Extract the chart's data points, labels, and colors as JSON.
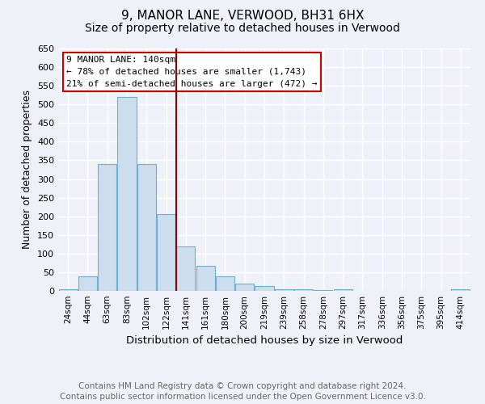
{
  "title": "9, MANOR LANE, VERWOOD, BH31 6HX",
  "subtitle": "Size of property relative to detached houses in Verwood",
  "xlabel": "Distribution of detached houses by size in Verwood",
  "ylabel": "Number of detached properties",
  "categories": [
    "24sqm",
    "44sqm",
    "63sqm",
    "83sqm",
    "102sqm",
    "122sqm",
    "141sqm",
    "161sqm",
    "180sqm",
    "200sqm",
    "219sqm",
    "239sqm",
    "258sqm",
    "278sqm",
    "297sqm",
    "317sqm",
    "336sqm",
    "356sqm",
    "375sqm",
    "395sqm",
    "414sqm"
  ],
  "values": [
    5,
    40,
    340,
    520,
    340,
    205,
    120,
    67,
    38,
    20,
    13,
    5,
    5,
    3,
    5,
    1,
    0,
    0,
    0,
    1,
    5
  ],
  "bar_color": "#ccdded",
  "bar_edge_color": "#6aafd6",
  "vline_x_index": 5.5,
  "vline_color": "#8b0000",
  "annotation_text": "9 MANOR LANE: 140sqm\n← 78% of detached houses are smaller (1,743)\n21% of semi-detached houses are larger (472) →",
  "annotation_box_color": "#ffffff",
  "annotation_box_edge_color": "#cc0000",
  "ylim": [
    0,
    650
  ],
  "yticks": [
    0,
    50,
    100,
    150,
    200,
    250,
    300,
    350,
    400,
    450,
    500,
    550,
    600,
    650
  ],
  "footer_line1": "Contains HM Land Registry data © Crown copyright and database right 2024.",
  "footer_line2": "Contains public sector information licensed under the Open Government Licence v3.0.",
  "background_color": "#eef2f8",
  "grid_color": "#ffffff",
  "title_fontsize": 11,
  "subtitle_fontsize": 10,
  "axis_label_fontsize": 9,
  "tick_fontsize": 7.5,
  "annotation_fontsize": 8,
  "footer_fontsize": 7.5
}
